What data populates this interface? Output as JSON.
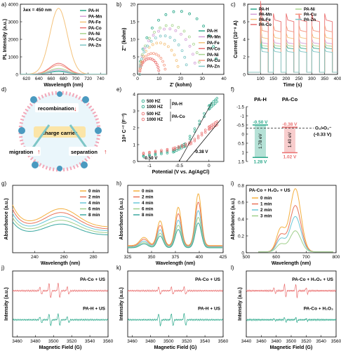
{
  "panel_labels": [
    "a)",
    "b)",
    "c)",
    "d)",
    "e)",
    "f)",
    "g)",
    "h)",
    "i)",
    "j)",
    "k)",
    "l)"
  ],
  "colors": {
    "PA-H": "#2aa88a",
    "PA-Mn": "#d4a0d8",
    "PA-Fe": "#f4c27a",
    "PA-Co": "#ea6f6f",
    "PA-Ni": "#a8d48f",
    "PA-Cu": "#f59a83",
    "PA-Zn": "#7ec6c6",
    "t0": "#f4b040",
    "t2": "#e8735a",
    "t4": "#6cc8d8",
    "t6": "#a0cf8c",
    "t8": "#3aa8a0"
  },
  "chart_data": [
    {
      "id": "a",
      "type": "line",
      "annotation": "λex = 450 nm",
      "xlabel": "Wavelength (nm)",
      "ylabel": "PL Intensity (a.u.)",
      "xlim": [
        610,
        750
      ],
      "ylim": [
        0,
        4000
      ],
      "xticks": [
        620,
        640,
        660,
        680,
        700,
        720,
        740
      ],
      "yticks": [
        0,
        1000,
        2000,
        3000,
        4000
      ],
      "center": 672,
      "width": 20,
      "series": [
        {
          "name": "PA-H",
          "peak": 180
        },
        {
          "name": "PA-Mn",
          "peak": 250
        },
        {
          "name": "PA-Fe",
          "peak": 3750
        },
        {
          "name": "PA-Co",
          "peak": 620
        },
        {
          "name": "PA-Ni",
          "peak": 330
        },
        {
          "name": "PA-Cu",
          "peak": 520
        },
        {
          "name": "PA-Zn",
          "peak": 140
        }
      ]
    },
    {
      "id": "b",
      "type": "scatter",
      "xlabel": "Z' (kohm)",
      "ylabel": "Z'' (kohm)",
      "xlim": [
        0,
        40
      ],
      "ylim": [
        0,
        20
      ],
      "xticks": [
        0,
        10,
        20,
        30,
        40
      ],
      "yticks": [
        0,
        5,
        10,
        15,
        20
      ],
      "series": [
        {
          "name": "PA-H",
          "diameter": 36
        },
        {
          "name": "PA-Mn",
          "diameter": 26
        },
        {
          "name": "PA-Fe",
          "diameter": 18
        },
        {
          "name": "PA-Co",
          "diameter": 9
        },
        {
          "name": "PA-Ni",
          "diameter": 28
        },
        {
          "name": "PA-Cu",
          "diameter": 12
        },
        {
          "name": "PA-Zn",
          "diameter": 22
        }
      ]
    },
    {
      "id": "c",
      "type": "line",
      "xlabel": "Time (s)",
      "ylabel": "Current (10⁻⁸ A)",
      "xlim": [
        50,
        400
      ],
      "ylim": [
        0,
        8
      ],
      "xticks": [
        100,
        150,
        200,
        250,
        300,
        350,
        400
      ],
      "yticks": [
        0,
        2,
        4,
        6,
        8
      ],
      "on_periods": [
        [
          100,
          130
        ],
        [
          150,
          180
        ],
        [
          200,
          230
        ],
        [
          250,
          280
        ],
        [
          300,
          330
        ],
        [
          350,
          380
        ]
      ],
      "series": [
        {
          "name": "PA-H",
          "on": 3.0
        },
        {
          "name": "PA-Mn",
          "on": 3.6
        },
        {
          "name": "PA-Fe",
          "on": 4.2
        },
        {
          "name": "PA-Co",
          "on": 6.2
        },
        {
          "name": "PA-Ni",
          "on": 3.3
        },
        {
          "name": "PA-Cu",
          "on": 5.0
        },
        {
          "name": "PA-Zn",
          "on": 2.6
        }
      ]
    },
    {
      "id": "e",
      "type": "line",
      "xlabel": "Potential (V vs. Ag/AgCl)",
      "ylabel": "10⁸ C⁻² (F⁻²)",
      "xlim": [
        -1.2,
        0.25
      ],
      "ylim": [
        0,
        4
      ],
      "xticks": [
        -1.0,
        -0.5,
        0.0
      ],
      "yticks": [
        0,
        1,
        2,
        3,
        4
      ],
      "annotations": [
        "-0.50 V",
        "-0.38 V"
      ],
      "legend": [
        {
          "labels": [
            "500 HZ",
            "1000 HZ"
          ],
          "group": "PA-H",
          "color": "#2aa88a"
        },
        {
          "labels": [
            "500 HZ",
            "1000 HZ"
          ],
          "group": "PA-Co",
          "color": "#ea6f6f"
        }
      ],
      "series": [
        {
          "name": "PA-H 500 HZ",
          "points": [
            [
              -1.1,
              0.3
            ],
            [
              -0.6,
              0.55
            ],
            [
              -0.4,
              0.9
            ],
            [
              0.0,
              3.1
            ],
            [
              0.15,
              3.6
            ]
          ]
        },
        {
          "name": "PA-H 1000 HZ",
          "points": [
            [
              -1.1,
              0.35
            ],
            [
              -0.6,
              0.65
            ],
            [
              -0.4,
              1.05
            ],
            [
              0.0,
              3.3
            ],
            [
              0.15,
              3.8
            ]
          ]
        },
        {
          "name": "PA-Co 500 HZ",
          "points": [
            [
              -1.1,
              0.45
            ],
            [
              -0.6,
              0.7
            ],
            [
              -0.3,
              1.05
            ],
            [
              0.0,
              1.9
            ],
            [
              0.15,
              2.2
            ]
          ]
        },
        {
          "name": "PA-Co 1000 HZ",
          "points": [
            [
              -1.1,
              0.5
            ],
            [
              -0.6,
              0.78
            ],
            [
              -0.3,
              1.15
            ],
            [
              0.0,
              2.05
            ],
            [
              0.15,
              2.4
            ]
          ]
        }
      ]
    },
    {
      "id": "f",
      "type": "bar",
      "ylim": [
        -1.5,
        1.5
      ],
      "yticks": [
        -1.5,
        -1.0,
        -0.5,
        0.0,
        0.5,
        1.0,
        1.5
      ],
      "ref_line": {
        "value": -0.33,
        "label": "O₂/•O₂⁻",
        "label2": "(-0.33 V)"
      },
      "bars": [
        {
          "name": "PA-H",
          "vb_label": "1.28 V",
          "cb_label": "-0.50 V",
          "gap_label": "1.78 eV",
          "vb": 1.28,
          "cb": -0.5
        },
        {
          "name": "PA-Co",
          "vb_label": "1.02 V",
          "cb_label": "-0.38 V",
          "gap_label": "1.40 eV",
          "vb": 1.02,
          "cb": -0.38
        }
      ]
    },
    {
      "id": "g",
      "type": "line",
      "xlabel": "Wavelength (nm)",
      "ylabel": "Absorbance (a.u.)",
      "xlim": [
        225,
        290
      ],
      "xticks": [
        240,
        260,
        280
      ],
      "series": [
        {
          "name": "0 min",
          "scale": 1.0
        },
        {
          "name": "2 min",
          "scale": 0.9
        },
        {
          "name": "4 min",
          "scale": 0.8
        },
        {
          "name": "6 min",
          "scale": 0.7
        },
        {
          "name": "8 min",
          "scale": 0.6
        }
      ]
    },
    {
      "id": "h",
      "type": "line",
      "xlabel": "Wavelength (nm)",
      "ylabel": "Absorbance (a.u.)",
      "xlim": [
        325,
        425
      ],
      "xticks": [
        325,
        350,
        375,
        400,
        425
      ],
      "peaks": [
        359,
        378,
        399
      ],
      "series": [
        {
          "name": "0 min",
          "scale": 1.0
        },
        {
          "name": "2 min",
          "scale": 0.85
        },
        {
          "name": "4 min",
          "scale": 0.7
        },
        {
          "name": "6 min",
          "scale": 0.58
        },
        {
          "name": "8 min",
          "scale": 0.48
        }
      ]
    },
    {
      "id": "i",
      "type": "line",
      "title": "PA-Co + H₂O₂ + US",
      "xlabel": "Wavelength (nm)",
      "ylabel": "Absorbance (a.u.)",
      "xlim": [
        500,
        800
      ],
      "ylim": [
        0,
        0.8
      ],
      "xticks": [
        500,
        600,
        700,
        800
      ],
      "yticks": [
        0.0,
        0.2,
        0.4,
        0.6,
        0.8
      ],
      "series": [
        {
          "name": "0 min",
          "peak": 0.75
        },
        {
          "name": "1 min",
          "peak": 0.55
        },
        {
          "name": "2 min",
          "peak": 0.42
        },
        {
          "name": "3 min",
          "peak": 0.25
        }
      ]
    },
    {
      "id": "j",
      "type": "line",
      "xlabel": "Magnetic Field (G)",
      "ylabel": "Intensity (a.u.)",
      "xlim": [
        3455,
        3560
      ],
      "xticks": [
        3460,
        3480,
        3500,
        3520,
        3540,
        3560
      ],
      "series": [
        {
          "name": "PA-Co + US",
          "amp": 1.0
        },
        {
          "name": "PA-H + US",
          "amp": 0.8
        }
      ]
    },
    {
      "id": "k",
      "type": "line",
      "xlabel": "Magnetic Field (G)",
      "ylabel": "Intensity (a.u.)",
      "xlim": [
        3455,
        3560
      ],
      "xticks": [
        3460,
        3480,
        3500,
        3520,
        3540,
        3560
      ],
      "series": [
        {
          "name": "PA-Co + US",
          "amp": 0.6
        },
        {
          "name": "PA-H + US",
          "amp": 1.0
        }
      ]
    },
    {
      "id": "l",
      "type": "line",
      "xlabel": "Magnetic Field (G)",
      "ylabel": "Intensity (a.u.)",
      "xlim": [
        3440,
        3560
      ],
      "xticks": [
        3440,
        3460,
        3480,
        3500,
        3520,
        3540,
        3560
      ],
      "series": [
        {
          "name": "PA-Co + H₂O₂ + US",
          "amp": 1.0
        },
        {
          "name": "PA-Co + H₂O₂",
          "amp": 0.35
        }
      ]
    }
  ],
  "schematic_d": {
    "center": "charge carrier",
    "top": "recombination",
    "left": "migration",
    "right": "separation",
    "arrow_down": "↓",
    "arrow_up": "↑"
  }
}
